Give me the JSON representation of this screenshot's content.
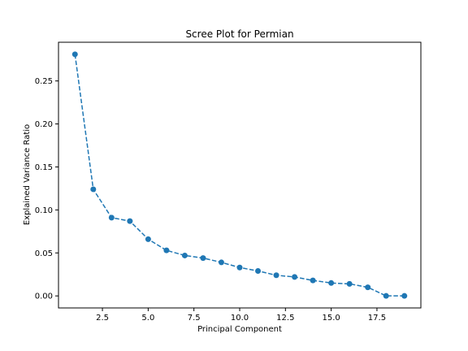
{
  "chart_data": {
    "type": "line",
    "title": "Scree Plot for Permian",
    "xlabel": "Principal Component",
    "ylabel": "Explained Variance Ratio",
    "xlim": [
      0.1,
      19.9
    ],
    "ylim": [
      -0.014,
      0.295
    ],
    "xticks": [
      "2.5",
      "5.0",
      "7.5",
      "10.0",
      "12.5",
      "15.0",
      "17.5"
    ],
    "xtick_values": [
      2.5,
      5.0,
      7.5,
      10.0,
      12.5,
      15.0,
      17.5
    ],
    "yticks": [
      "0.00",
      "0.05",
      "0.10",
      "0.15",
      "0.20",
      "0.25"
    ],
    "ytick_values": [
      0.0,
      0.05,
      0.1,
      0.15,
      0.2,
      0.25
    ],
    "grid": false,
    "series": [
      {
        "x": [
          1,
          2,
          3,
          4,
          5,
          6,
          7,
          8,
          9,
          10,
          11,
          12,
          13,
          14,
          15,
          16,
          17,
          18,
          19
        ],
        "values": [
          0.281,
          0.124,
          0.091,
          0.087,
          0.066,
          0.053,
          0.047,
          0.044,
          0.039,
          0.033,
          0.029,
          0.024,
          0.022,
          0.018,
          0.015,
          0.014,
          0.01,
          0.0,
          0.0
        ],
        "color": "#1f77b4",
        "line_style": "dashed",
        "marker": "circle"
      }
    ]
  }
}
